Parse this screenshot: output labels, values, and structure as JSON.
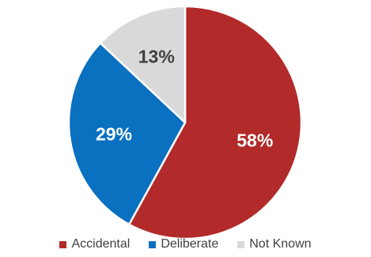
{
  "chart_data": {
    "type": "pie",
    "categories": [
      "Accidental",
      "Deliberate",
      "Not Known"
    ],
    "values": [
      58,
      29,
      13
    ],
    "labels": [
      "58%",
      "29%",
      "13%"
    ],
    "colors": [
      "#B22A2A",
      "#0A70C0",
      "#D9D9D9"
    ],
    "label_colors": [
      "#FFFFFF",
      "#FFFFFF",
      "#404040"
    ],
    "start_angle_deg": 0,
    "direction": "clockwise",
    "legend_position": "bottom"
  }
}
